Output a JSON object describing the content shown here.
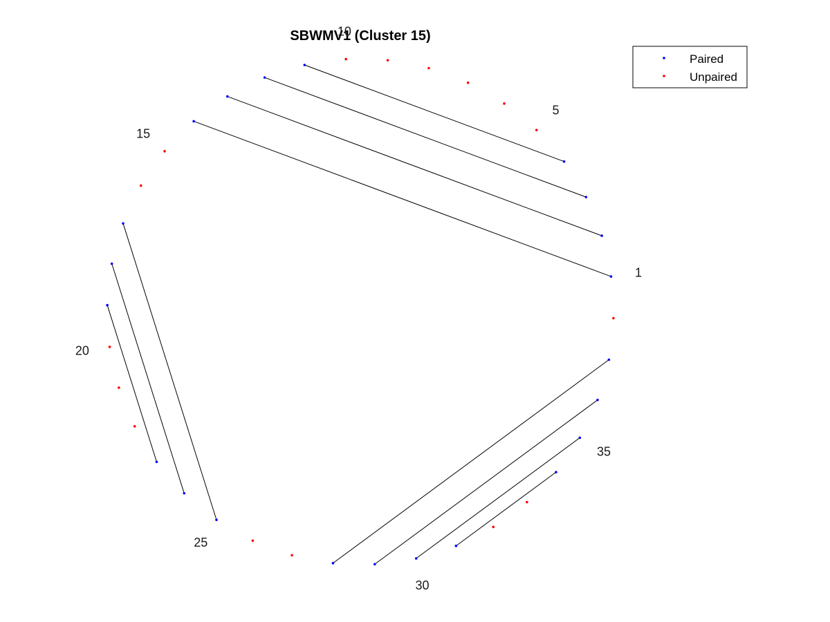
{
  "chart_data": {
    "type": "arc-diagram-circular",
    "title": "SBWMV1 (Cluster 15)",
    "node_count": 38,
    "tick_labels": [
      "1",
      "5",
      "10",
      "15",
      "20",
      "25",
      "30",
      "35"
    ],
    "tick_nodes": [
      1,
      5,
      10,
      15,
      20,
      25,
      30,
      35
    ],
    "pairs": [
      [
        1,
        14
      ],
      [
        2,
        13
      ],
      [
        3,
        12
      ],
      [
        4,
        11
      ],
      [
        17,
        25
      ],
      [
        18,
        24
      ],
      [
        19,
        23
      ],
      [
        28,
        37
      ],
      [
        29,
        36
      ],
      [
        30,
        35
      ],
      [
        31,
        34
      ]
    ],
    "legend": [
      {
        "label": "Paired",
        "color": "#0000ff"
      },
      {
        "label": "Unpaired",
        "color": "#ff0000"
      }
    ],
    "legend_position": "top-right",
    "line_color": "#000000"
  }
}
